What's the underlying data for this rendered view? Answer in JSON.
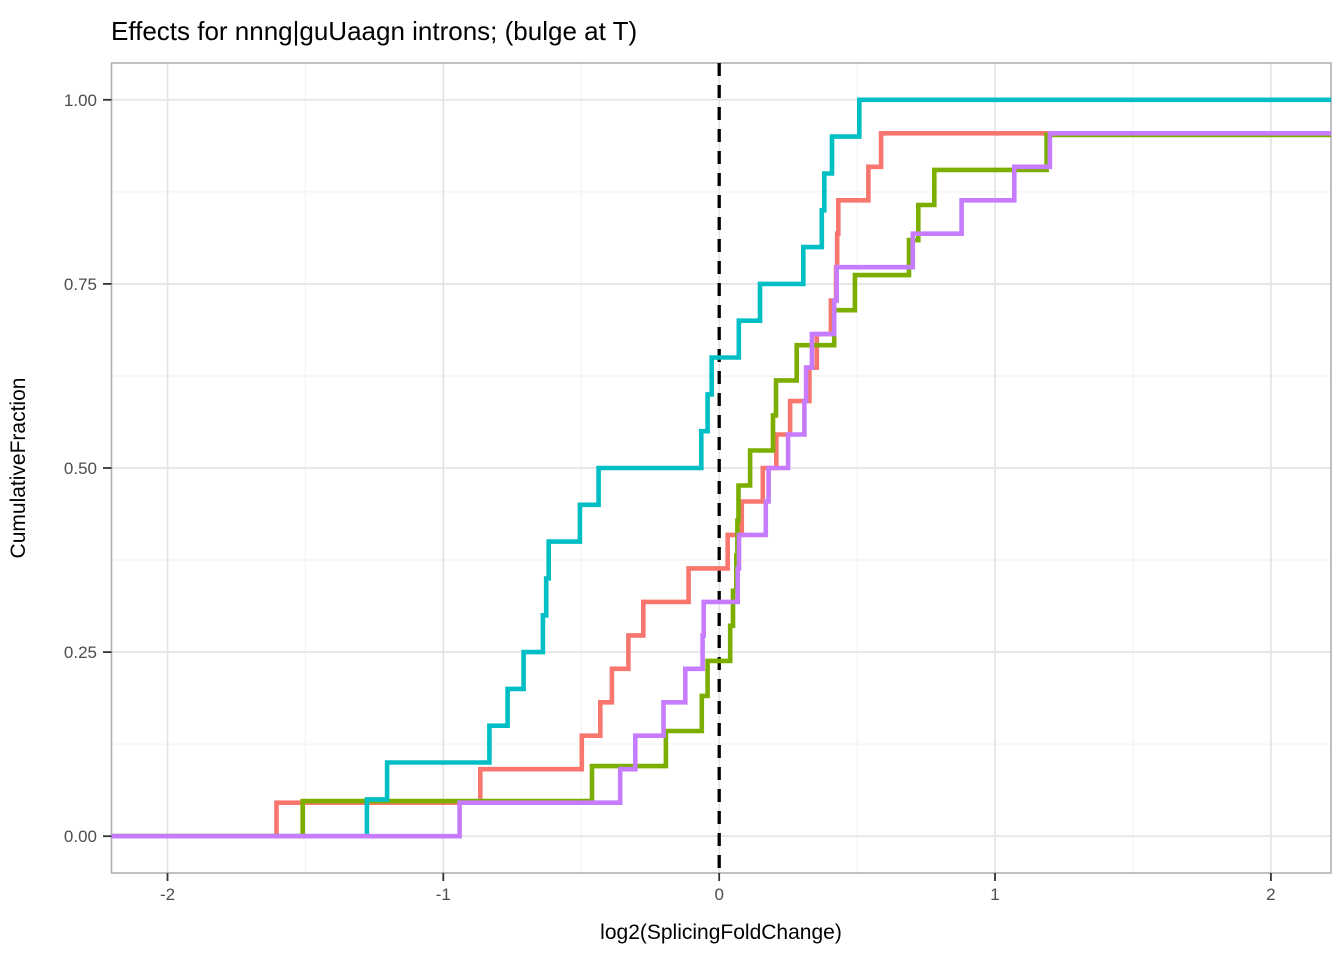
{
  "title": "Effects for nnng|guUaagn introns; (bulge at T)",
  "colors": {
    "salmon": "#F8766D",
    "olive": "#7CAE00",
    "teal": "#00BFC4",
    "purple": "#C77CFF",
    "grid_major": "#e4e4e4",
    "grid_minor": "#efefef",
    "panel_border": "#b0b0b0",
    "tick_mark": "#333333",
    "tick_text": "#4d4d4d",
    "vline": "#000000"
  },
  "chart_data": {
    "type": "line",
    "subtype": "ecdf-step",
    "title": "Effects for nnng|guUaagn introns; (bulge at T)",
    "xlabel": "log2(SplicingFoldChange)",
    "ylabel": "CumulativeFraction",
    "x_range": [
      -2.203,
      2.218
    ],
    "y_range": [
      -0.05,
      1.05
    ],
    "grid": true,
    "legend_position": "none",
    "x_ticks": {
      "values": [
        -2,
        -1,
        0,
        1,
        2
      ],
      "labels": [
        "-2",
        "-1",
        "0",
        "1",
        "2"
      ]
    },
    "y_ticks": {
      "values": [
        0,
        0.25,
        0.5,
        0.75,
        1.0
      ],
      "labels": [
        "0.00",
        "0.25",
        "0.50",
        "0.75",
        "1.00"
      ]
    },
    "x_minor": [
      -1.5,
      -0.5,
      0.5,
      1.5
    ],
    "y_minor": [
      0.125,
      0.375,
      0.625,
      0.875
    ],
    "vline": {
      "x": 0,
      "style": "dashed",
      "color": "#000000"
    },
    "series": [
      {
        "name": "salmon",
        "color": "#F8766D",
        "n": 22,
        "points": [
          [
            -1.605,
            0.0455
          ],
          [
            -0.866,
            0.0909
          ],
          [
            -0.498,
            0.1364
          ],
          [
            -0.431,
            0.1818
          ],
          [
            -0.389,
            0.2273
          ],
          [
            -0.329,
            0.2727
          ],
          [
            -0.275,
            0.3182
          ],
          [
            -0.111,
            0.3636
          ],
          [
            0.031,
            0.4091
          ],
          [
            0.082,
            0.4545
          ],
          [
            0.158,
            0.5
          ],
          [
            0.207,
            0.5455
          ],
          [
            0.257,
            0.5909
          ],
          [
            0.327,
            0.6364
          ],
          [
            0.354,
            0.6818
          ],
          [
            0.405,
            0.7273
          ],
          [
            0.424,
            0.7727
          ],
          [
            0.428,
            0.8182
          ],
          [
            0.432,
            0.8636
          ],
          [
            0.541,
            0.9091
          ],
          [
            0.587,
            0.9545
          ]
        ]
      },
      {
        "name": "olive",
        "color": "#7CAE00",
        "n": 21,
        "points": [
          [
            -1.51,
            0.0476
          ],
          [
            -0.461,
            0.0952
          ],
          [
            -0.193,
            0.1429
          ],
          [
            -0.063,
            0.1905
          ],
          [
            -0.042,
            0.2381
          ],
          [
            0.04,
            0.2857
          ],
          [
            0.05,
            0.3333
          ],
          [
            0.062,
            0.381
          ],
          [
            0.066,
            0.4286
          ],
          [
            0.07,
            0.4762
          ],
          [
            0.112,
            0.5238
          ],
          [
            0.195,
            0.5714
          ],
          [
            0.206,
            0.619
          ],
          [
            0.281,
            0.6667
          ],
          [
            0.417,
            0.7143
          ],
          [
            0.492,
            0.7619
          ],
          [
            0.688,
            0.8095
          ],
          [
            0.722,
            0.8571
          ],
          [
            0.78,
            0.9048
          ],
          [
            1.187,
            0.9524
          ]
        ]
      },
      {
        "name": "teal",
        "color": "#00BFC4",
        "n": 20,
        "points": [
          [
            -1.277,
            0.05
          ],
          [
            -1.204,
            0.1
          ],
          [
            -0.833,
            0.15
          ],
          [
            -0.767,
            0.2
          ],
          [
            -0.709,
            0.25
          ],
          [
            -0.639,
            0.3
          ],
          [
            -0.627,
            0.35
          ],
          [
            -0.618,
            0.4
          ],
          [
            -0.505,
            0.45
          ],
          [
            -0.437,
            0.5
          ],
          [
            -0.065,
            0.55
          ],
          [
            -0.042,
            0.6
          ],
          [
            -0.027,
            0.65
          ],
          [
            0.071,
            0.7
          ],
          [
            0.148,
            0.75
          ],
          [
            0.305,
            0.8
          ],
          [
            0.372,
            0.85
          ],
          [
            0.381,
            0.9
          ],
          [
            0.409,
            0.95
          ],
          [
            0.508,
            1.0
          ]
        ]
      },
      {
        "name": "purple",
        "color": "#C77CFF",
        "n": 22,
        "points": [
          [
            -0.941,
            0.0455
          ],
          [
            -0.359,
            0.0909
          ],
          [
            -0.304,
            0.1364
          ],
          [
            -0.202,
            0.1818
          ],
          [
            -0.123,
            0.2273
          ],
          [
            -0.06,
            0.2727
          ],
          [
            -0.056,
            0.3182
          ],
          [
            0.067,
            0.3636
          ],
          [
            0.072,
            0.4091
          ],
          [
            0.169,
            0.4545
          ],
          [
            0.179,
            0.5
          ],
          [
            0.25,
            0.5455
          ],
          [
            0.309,
            0.5909
          ],
          [
            0.315,
            0.6364
          ],
          [
            0.336,
            0.6818
          ],
          [
            0.417,
            0.7273
          ],
          [
            0.426,
            0.7727
          ],
          [
            0.702,
            0.8182
          ],
          [
            0.879,
            0.8636
          ],
          [
            1.07,
            0.9091
          ],
          [
            1.199,
            0.9545
          ]
        ]
      }
    ]
  }
}
